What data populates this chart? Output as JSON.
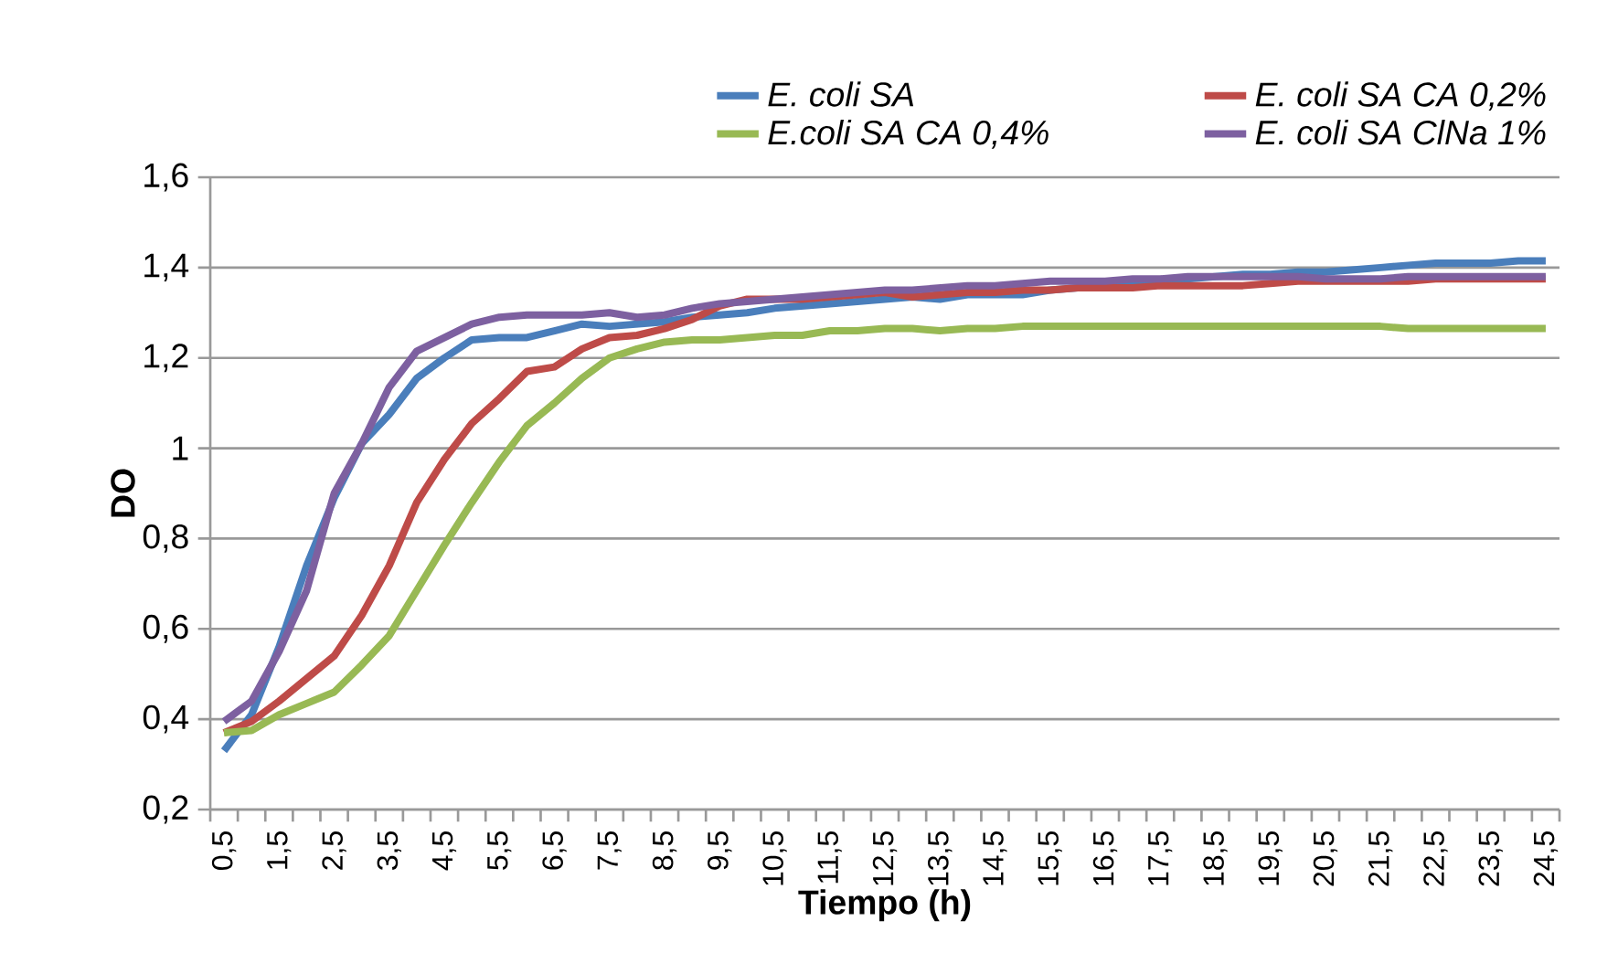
{
  "chart_data": {
    "type": "line",
    "xlabel": "Tiempo (h)",
    "ylabel": "DO",
    "categories": [
      "0,5",
      null,
      "1,5",
      null,
      "2,5",
      null,
      "3,5",
      null,
      "4,5",
      null,
      "5,5",
      null,
      "6,5",
      null,
      "7,5",
      null,
      "8,5",
      null,
      "9,5",
      null,
      "10,5",
      null,
      "11,5",
      null,
      "12,5",
      null,
      "13,5",
      null,
      "14,5",
      null,
      "15,5",
      null,
      "16,5",
      null,
      "17,5",
      null,
      "18,5",
      null,
      "19,5",
      null,
      "20,5",
      null,
      "21,5",
      null,
      "22,5",
      null,
      "23,5",
      null,
      "24,5"
    ],
    "series": [
      {
        "name": "*E. coli SA*",
        "color": "#4a7ebb",
        "values": [
          0.33,
          0.41,
          0.56,
          0.74,
          0.89,
          1.01,
          1.075,
          1.155,
          1.2,
          1.24,
          1.245,
          1.245,
          1.26,
          1.275,
          1.27,
          1.275,
          1.28,
          1.29,
          1.295,
          1.3,
          1.31,
          1.315,
          1.32,
          1.325,
          1.33,
          1.335,
          1.33,
          1.34,
          1.34,
          1.34,
          1.35,
          1.355,
          1.36,
          1.36,
          1.365,
          1.375,
          1.38,
          1.385,
          1.385,
          1.39,
          1.39,
          1.395,
          1.4,
          1.405,
          1.41,
          1.41,
          1.41,
          1.415,
          1.415
        ]
      },
      {
        "name": "*E. coli SA CA 0,2%*",
        "color": "#be4b48",
        "values": [
          0.37,
          0.395,
          0.44,
          0.49,
          0.54,
          0.63,
          0.74,
          0.88,
          0.975,
          1.055,
          1.11,
          1.17,
          1.18,
          1.22,
          1.245,
          1.25,
          1.265,
          1.285,
          1.315,
          1.33,
          1.33,
          1.33,
          1.335,
          1.34,
          1.345,
          1.335,
          1.34,
          1.345,
          1.345,
          1.35,
          1.35,
          1.355,
          1.355,
          1.355,
          1.36,
          1.36,
          1.36,
          1.36,
          1.365,
          1.37,
          1.37,
          1.37,
          1.37,
          1.37,
          1.375,
          1.375,
          1.375,
          1.375,
          1.375
        ]
      },
      {
        "name": "*E.coli SA CA 0,4%*",
        "color": "#98b954",
        "values": [
          0.37,
          0.375,
          0.41,
          0.435,
          0.46,
          0.52,
          0.585,
          0.685,
          0.785,
          0.88,
          0.97,
          1.05,
          1.1,
          1.155,
          1.2,
          1.22,
          1.235,
          1.24,
          1.24,
          1.245,
          1.25,
          1.25,
          1.26,
          1.26,
          1.265,
          1.265,
          1.26,
          1.265,
          1.265,
          1.27,
          1.27,
          1.27,
          1.27,
          1.27,
          1.27,
          1.27,
          1.27,
          1.27,
          1.27,
          1.27,
          1.27,
          1.27,
          1.27,
          1.265,
          1.265,
          1.265,
          1.265,
          1.265,
          1.265
        ]
      },
      {
        "name": "*E. coli SA ClNa 1%*",
        "color": "#7d60a0",
        "values": [
          0.395,
          0.44,
          0.55,
          0.685,
          0.9,
          1.01,
          1.135,
          1.215,
          1.245,
          1.275,
          1.29,
          1.295,
          1.295,
          1.295,
          1.3,
          1.29,
          1.295,
          1.31,
          1.32,
          1.325,
          1.33,
          1.335,
          1.34,
          1.345,
          1.35,
          1.35,
          1.355,
          1.36,
          1.36,
          1.365,
          1.37,
          1.37,
          1.37,
          1.375,
          1.375,
          1.38,
          1.38,
          1.38,
          1.38,
          1.38,
          1.375,
          1.375,
          1.375,
          1.38,
          1.38,
          1.38,
          1.38,
          1.38,
          1.38
        ]
      }
    ],
    "ylim": [
      0.2,
      1.6
    ],
    "yticks": [
      {
        "value": 0.2,
        "label": "0,2"
      },
      {
        "value": 0.4,
        "label": "0,4"
      },
      {
        "value": 0.6,
        "label": "0,6"
      },
      {
        "value": 0.8,
        "label": "0,8"
      },
      {
        "value": 1,
        "label": "1"
      },
      {
        "value": 1.2,
        "label": "1,2"
      },
      {
        "value": 1.4,
        "label": "1,4"
      },
      {
        "value": 1.6,
        "label": "1,6"
      }
    ],
    "grid": "y",
    "legend": "top"
  }
}
